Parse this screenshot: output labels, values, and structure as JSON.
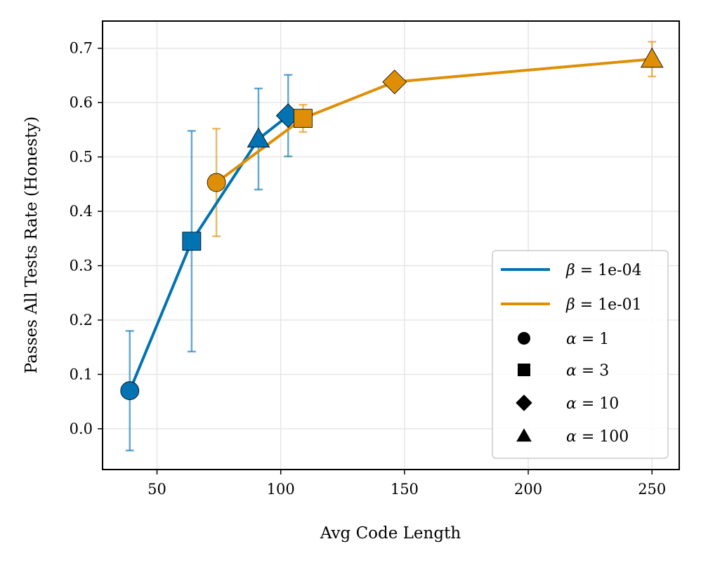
{
  "chart_data": {
    "type": "line",
    "xlabel": "Avg Code Length",
    "ylabel": "Passes All Tests Rate (Honesty)",
    "xlim": [
      28,
      261
    ],
    "ylim": [
      -0.075,
      0.75
    ],
    "xticks": [
      50,
      100,
      150,
      200,
      250
    ],
    "yticks": [
      0.0,
      0.1,
      0.2,
      0.3,
      0.4,
      0.5,
      0.6,
      0.7
    ],
    "xtick_labels": [
      "50",
      "100",
      "150",
      "200",
      "250"
    ],
    "ytick_labels": [
      "0.0",
      "0.1",
      "0.2",
      "0.3",
      "0.4",
      "0.5",
      "0.6",
      "0.7"
    ],
    "grid": true,
    "legend_position": "lower-right",
    "series": [
      {
        "name": "β = 1e-04",
        "legend_symbol": "β",
        "legend_value": "= 1e-04",
        "color": "#0173b2",
        "points": [
          {
            "alpha": 1,
            "x": 39,
            "y": 0.07,
            "err": 0.11
          },
          {
            "alpha": 3,
            "x": 64,
            "y": 0.345,
            "err": 0.203
          },
          {
            "alpha": 100,
            "x": 91,
            "y": 0.533,
            "err": 0.093
          },
          {
            "alpha": 10,
            "x": 103,
            "y": 0.576,
            "err": 0.075
          }
        ]
      },
      {
        "name": "β = 1e-01",
        "legend_symbol": "β",
        "legend_value": "= 1e-01",
        "color": "#de8f05",
        "points": [
          {
            "alpha": 1,
            "x": 74,
            "y": 0.453,
            "err": 0.099
          },
          {
            "alpha": 3,
            "x": 109,
            "y": 0.571,
            "err": 0.025
          },
          {
            "alpha": 10,
            "x": 146,
            "y": 0.638,
            "err": 0.0
          },
          {
            "alpha": 100,
            "x": 250,
            "y": 0.68,
            "err": 0.032
          }
        ]
      }
    ],
    "markers": [
      {
        "alpha": 1,
        "shape": "circle",
        "legend_symbol": "α",
        "legend_value": "= 1"
      },
      {
        "alpha": 3,
        "shape": "square",
        "legend_symbol": "α",
        "legend_value": "= 3"
      },
      {
        "alpha": 10,
        "shape": "diamond",
        "legend_symbol": "α",
        "legend_value": "= 10"
      },
      {
        "alpha": 100,
        "shape": "triangle",
        "legend_symbol": "α",
        "legend_value": "= 100"
      }
    ]
  }
}
